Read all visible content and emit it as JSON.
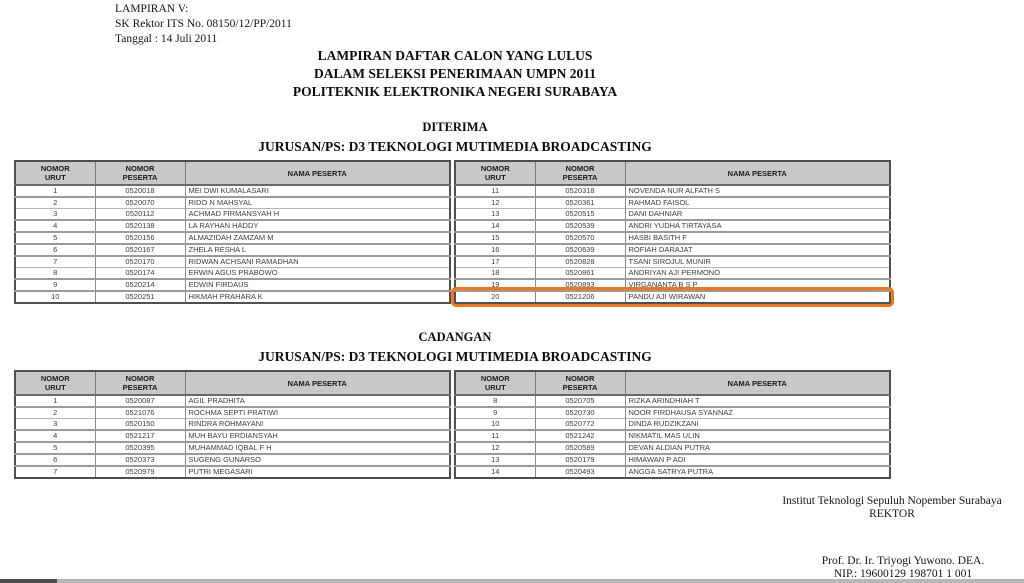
{
  "page": {
    "header_block": {
      "lines": [
        "LAMPIRAN V:",
        "SK Rektor ITS No. 08150/12/PP/2011",
        "Tanggal : 14 Juli 2011"
      ]
    },
    "title_block": {
      "lines": [
        "LAMPIRAN DAFTAR CALON YANG LULUS",
        "DALAM SELEKSI PENERIMAAN UMPN 2011",
        "POLITEKNIK ELEKTRONIKA NEGERI SURABAYA"
      ]
    },
    "columns": {
      "col1": [
        "NOMOR",
        "URUT"
      ],
      "col2": [
        "NOMOR",
        "PESERTA"
      ],
      "col3": [
        "NAMA PESERTA"
      ]
    },
    "sections": [
      {
        "heading": "DITERIMA",
        "subheading": "JURUSAN/PS: D3 TEKNOLOGI MUTIMEDIA BROADCASTING",
        "left_rows": [
          {
            "no": "1",
            "peserta": "0520018",
            "nama": "MEI DWI KUMALASARI"
          },
          {
            "no": "2",
            "peserta": "0520070",
            "nama": "RIDO N MAHSYAL"
          },
          {
            "no": "3",
            "peserta": "0520112",
            "nama": "ACHMAD FIRMANSYAH H"
          },
          {
            "no": "4",
            "peserta": "0520138",
            "nama": "LA RAYHAN HADDY"
          },
          {
            "no": "5",
            "peserta": "0520156",
            "nama": "ALMAZIDAH ZAMZAM M"
          },
          {
            "no": "6",
            "peserta": "0520167",
            "nama": "ZHELA RESHA L"
          },
          {
            "no": "7",
            "peserta": "0520170",
            "nama": "RIDWAN ACHSANI RAMADHAN"
          },
          {
            "no": "8",
            "peserta": "0520174",
            "nama": "ERWIN AGUS PRABOWO"
          },
          {
            "no": "9",
            "peserta": "0520214",
            "nama": "EDWIN FIRDAUS"
          },
          {
            "no": "10",
            "peserta": "0520251",
            "nama": "HIKMAH PRAHARA K"
          }
        ],
        "right_rows": [
          {
            "no": "11",
            "peserta": "0520318",
            "nama": "NOVENDA NUR ALFATH S"
          },
          {
            "no": "12",
            "peserta": "0520361",
            "nama": "RAHMAD FAISOL"
          },
          {
            "no": "13",
            "peserta": "0520515",
            "nama": "DANI DAHNIAR"
          },
          {
            "no": "14",
            "peserta": "0520539",
            "nama": "ANDRI YUDHA TIRTAYASA"
          },
          {
            "no": "15",
            "peserta": "0520570",
            "nama": "HASBI BASITH F"
          },
          {
            "no": "16",
            "peserta": "0520639",
            "nama": "ROFIAH DARAJAT"
          },
          {
            "no": "17",
            "peserta": "0520828",
            "nama": "TSANI SIROJUL MUNIR"
          },
          {
            "no": "18",
            "peserta": "0520861",
            "nama": "ANDRIYAN AJI PERMONO"
          },
          {
            "no": "19",
            "peserta": "0520893",
            "nama": "VIRGANANTA B S P"
          },
          {
            "no": "20",
            "peserta": "0521206",
            "nama": "PANDU AJI WIRAWAN",
            "highlighted": true
          }
        ]
      },
      {
        "heading": "CADANGAN",
        "subheading": "JURUSAN/PS: D3 TEKNOLOGI MUTIMEDIA BROADCASTING",
        "left_rows": [
          {
            "no": "1",
            "peserta": "0520087",
            "nama": "AGIL PRADHITA"
          },
          {
            "no": "2",
            "peserta": "0521076",
            "nama": "ROCHMA SEPTI PRATIWI"
          },
          {
            "no": "3",
            "peserta": "0520150",
            "nama": "RINDRA ROHMAYANI"
          },
          {
            "no": "4",
            "peserta": "0521217",
            "nama": "MUH BAYU ERDIANSYAH"
          },
          {
            "no": "5",
            "peserta": "0520395",
            "nama": "MUHAMMAD IQBAL F H"
          },
          {
            "no": "6",
            "peserta": "0520373",
            "nama": "SUGENG GUNARSO"
          },
          {
            "no": "7",
            "peserta": "0520979",
            "nama": "PUTRI MEGASARI"
          }
        ],
        "right_rows": [
          {
            "no": "8",
            "peserta": "0520705",
            "nama": "RIZKA ARINDHIAH T"
          },
          {
            "no": "9",
            "peserta": "0520730",
            "nama": "NOOR FIRDHAUSA SYANNAZ"
          },
          {
            "no": "10",
            "peserta": "0520772",
            "nama": "DINDA RUDZIKZANI"
          },
          {
            "no": "11",
            "peserta": "0521242",
            "nama": "NIKMATIL MAS ULIN"
          },
          {
            "no": "12",
            "peserta": "0520589",
            "nama": "DEVAN ALDIAN PUTRA"
          },
          {
            "no": "13",
            "peserta": "0520179",
            "nama": "HIMAWAN P ADI"
          },
          {
            "no": "14",
            "peserta": "0520493",
            "nama": "ANGGA SATRYA PUTRA"
          }
        ]
      }
    ],
    "highlight": {
      "applies_to_row": "20",
      "color": "#ed7621"
    },
    "footer": {
      "institution": "Institut Teknologi Sepuluh Nopember Surabaya",
      "role": "REKTOR",
      "signer": "Prof. Dr. Ir. Triyogi Yuwono. DEA.",
      "nip": "NIP.: 19600129 198701 1 001"
    },
    "scrollbar": {
      "orientation": "horizontal"
    }
  }
}
